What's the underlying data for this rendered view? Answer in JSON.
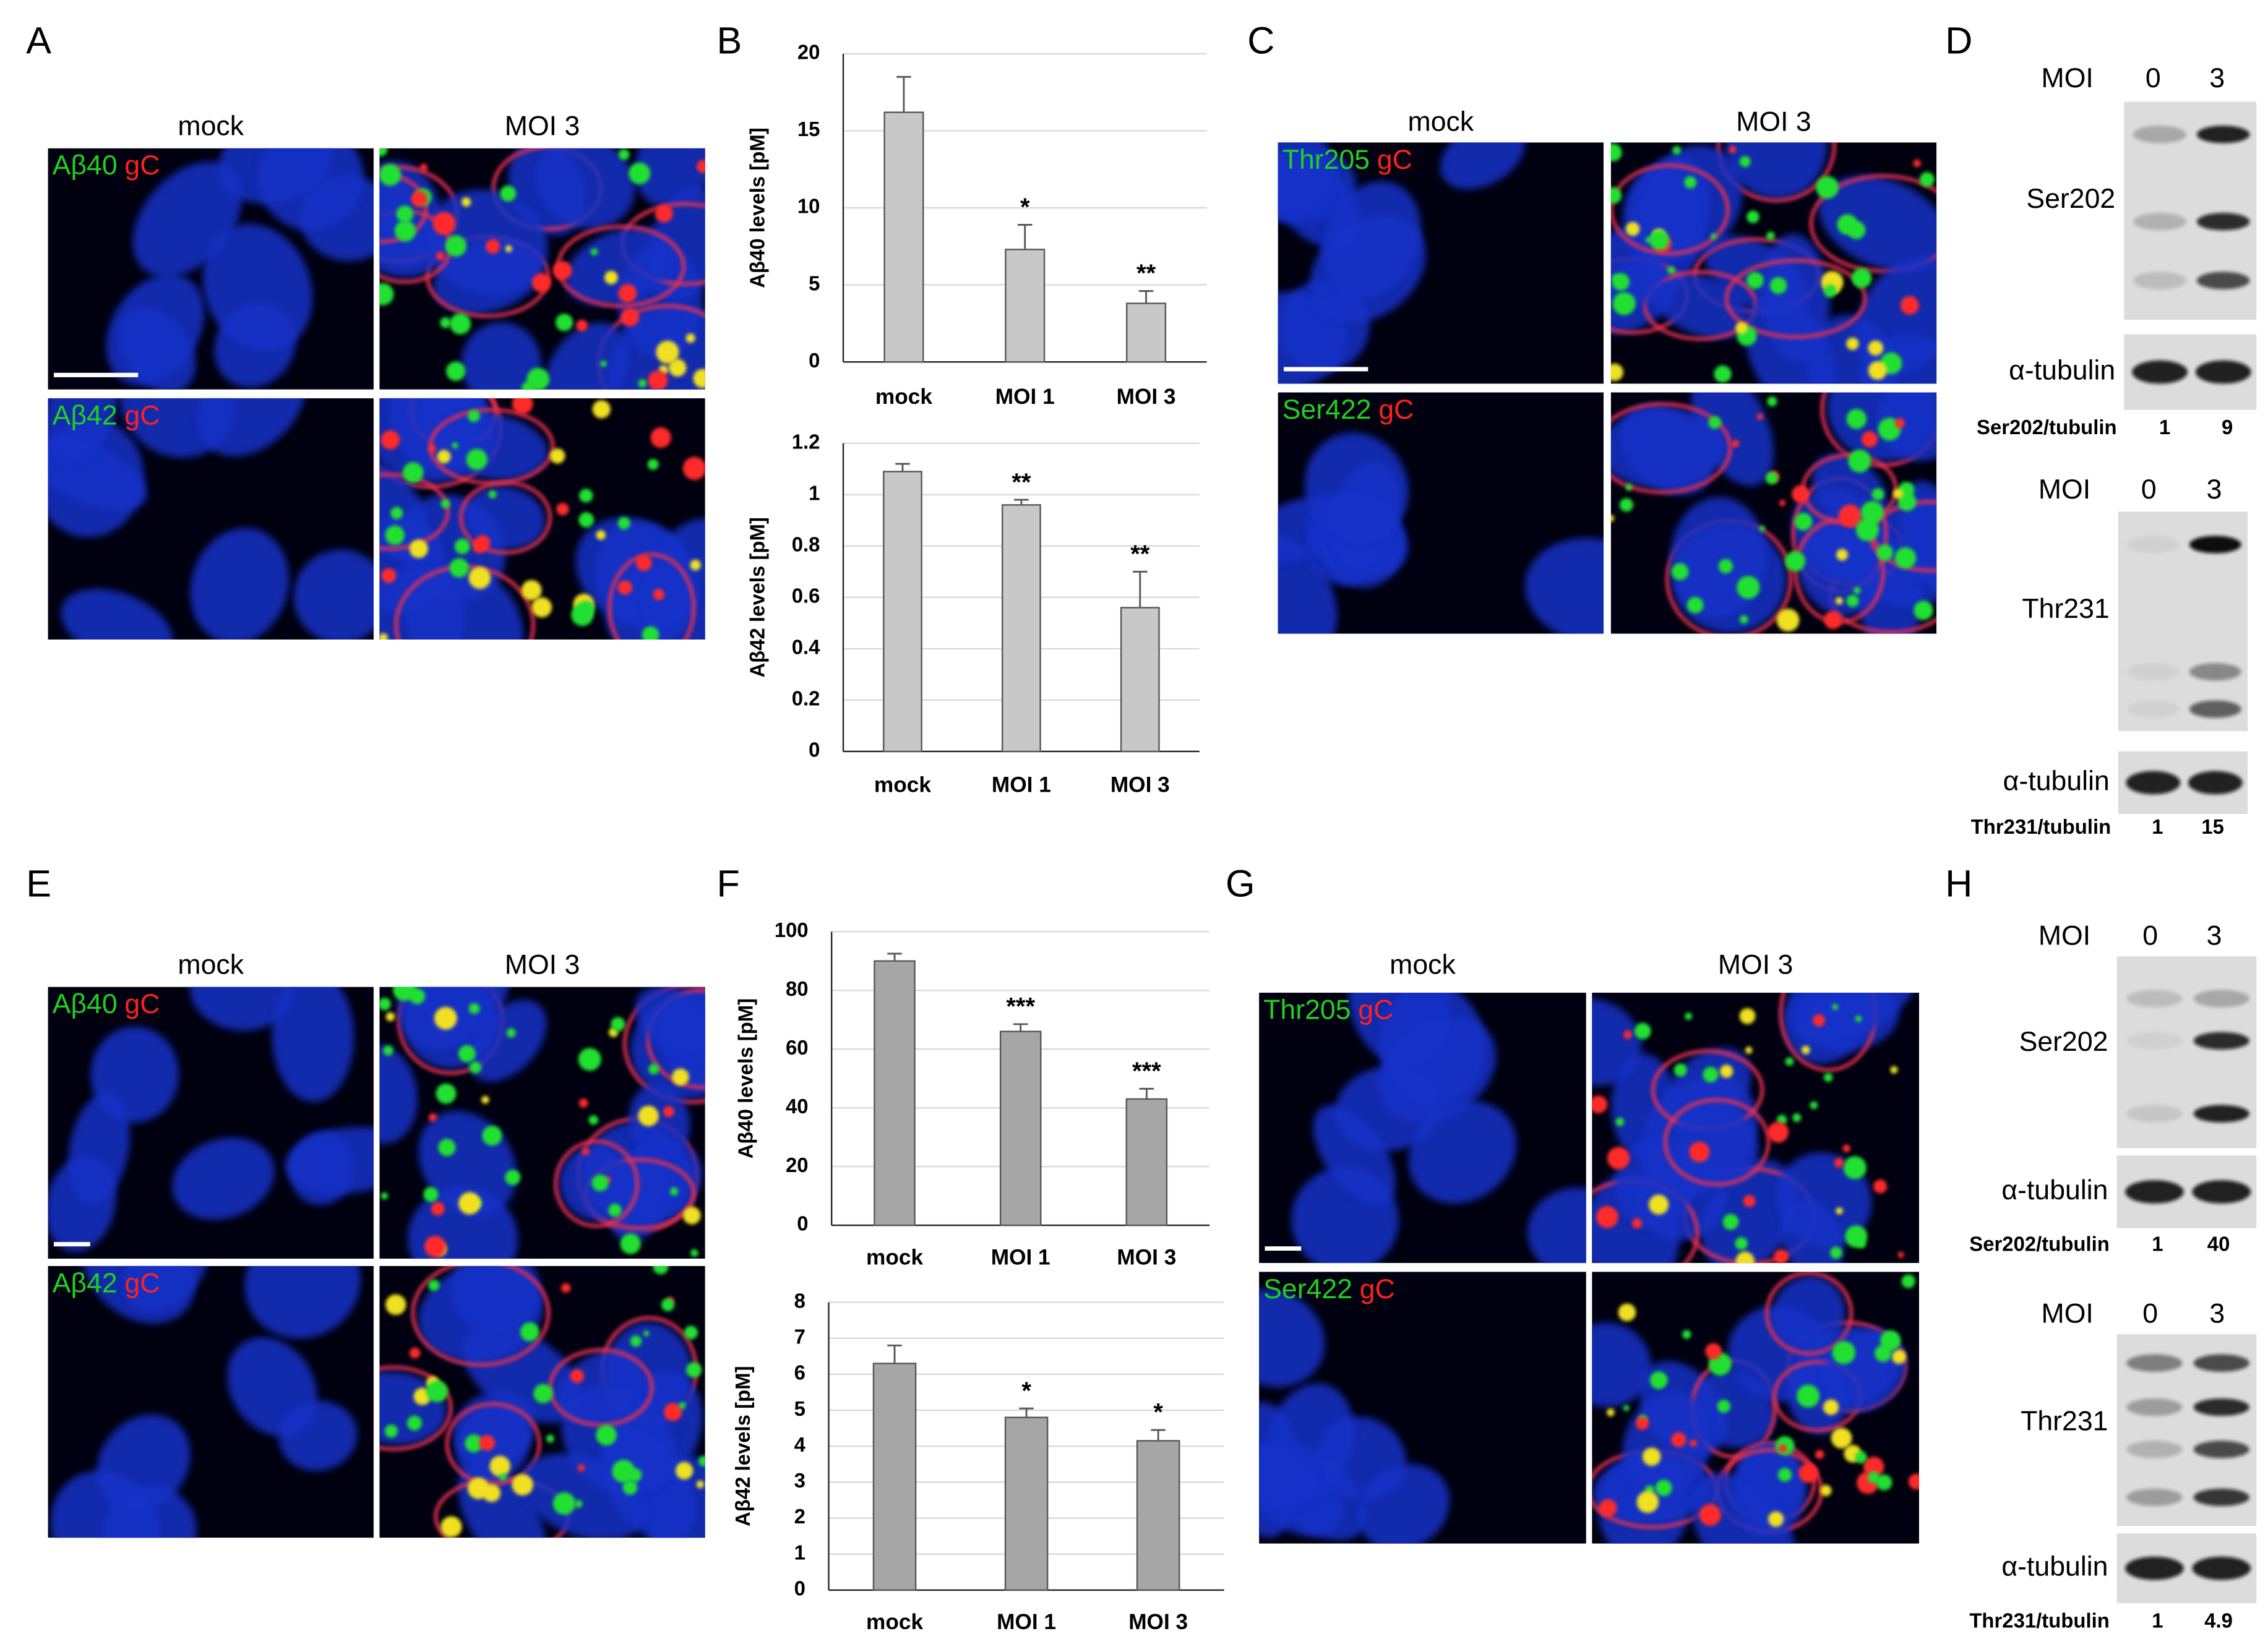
{
  "chart_data": [
    {
      "type": "bar",
      "y_label": "Aβ40 levels [pM]",
      "categories": [
        "mock",
        "MOI 1",
        "MOI 3"
      ],
      "values": [
        16.2,
        7.3,
        3.8
      ],
      "errors": [
        2.3,
        1.6,
        0.8
      ],
      "annotations": [
        null,
        "*",
        "**"
      ],
      "color": "#c8c8c8",
      "ylim": [
        0,
        20
      ],
      "yticks": [
        0,
        5,
        10,
        15,
        20
      ],
      "grid": true
    },
    {
      "type": "bar",
      "y_label": "Aβ42 levels [pM]",
      "categories": [
        "mock",
        "MOI 1",
        "MOI 3"
      ],
      "values": [
        1.09,
        0.96,
        0.56
      ],
      "errors": [
        0.03,
        0.02,
        0.14
      ],
      "annotations": [
        null,
        "**",
        "**"
      ],
      "color": "#c8c8c8",
      "ylim": [
        0,
        1.2
      ],
      "yticks": [
        0,
        0.2,
        0.4,
        0.6,
        0.8,
        1,
        1.2
      ],
      "grid": true
    },
    {
      "type": "bar",
      "y_label": "Aβ40 levels [pM]",
      "categories": [
        "mock",
        "MOI 1",
        "MOI 3"
      ],
      "values": [
        90,
        66,
        43
      ],
      "errors": [
        2.5,
        2.5,
        3.5
      ],
      "annotations": [
        null,
        "***",
        "***"
      ],
      "color": "#a6a6a6",
      "ylim": [
        0,
        100
      ],
      "yticks": [
        0,
        20,
        40,
        60,
        80,
        100
      ],
      "grid": true
    },
    {
      "type": "bar",
      "y_label": "Aβ42 levels [pM]",
      "categories": [
        "mock",
        "MOI 1",
        "MOI 3"
      ],
      "values": [
        6.3,
        4.8,
        4.15
      ],
      "errors": [
        0.5,
        0.25,
        0.3
      ],
      "annotations": [
        null,
        "*",
        "*"
      ],
      "color": "#a6a6a6",
      "ylim": [
        0,
        8
      ],
      "yticks": [
        0,
        1,
        2,
        3,
        4,
        5,
        6,
        7,
        8
      ],
      "grid": true
    }
  ],
  "figure": {
    "panel_labels": [
      "A",
      "B",
      "C",
      "D",
      "E",
      "F",
      "G",
      "H"
    ],
    "if_panels": [
      {
        "headers": [
          "mock",
          "MOI 3"
        ],
        "rows": [
          {
            "green": "Aβ40",
            "red": "gC"
          },
          {
            "green": "Aβ42",
            "red": "gC"
          }
        ]
      },
      {
        "headers": [
          "mock",
          "MOI 3"
        ],
        "rows": [
          {
            "green": "Thr205",
            "red": "gC"
          },
          {
            "green": "Ser422",
            "red": "gC"
          }
        ]
      },
      {
        "headers": [
          "mock",
          "MOI 3"
        ],
        "rows": [
          {
            "green": "Aβ40",
            "red": "gC"
          },
          {
            "green": "Aβ42",
            "red": "gC"
          }
        ]
      },
      {
        "headers": [
          "mock",
          "MOI 3"
        ],
        "rows": [
          {
            "green": "Thr205",
            "red": "gC"
          },
          {
            "green": "Ser422",
            "red": "gC"
          }
        ]
      }
    ],
    "blots": [
      {
        "moi": "MOI",
        "lanes": [
          0,
          3
        ],
        "target": "Ser202",
        "loading": "α-tubulin",
        "ratio_label": "Ser202/tubulin",
        "ratios": [
          1,
          9
        ]
      },
      {
        "moi": "MOI",
        "lanes": [
          0,
          3
        ],
        "target": "Thr231",
        "loading": "α-tubulin",
        "ratio_label": "Thr231/tubulin",
        "ratios": [
          1,
          15
        ]
      },
      {
        "moi": "MOI",
        "lanes": [
          0,
          3
        ],
        "target": "Ser202",
        "loading": "α-tubulin",
        "ratio_label": "Ser202/tubulin",
        "ratios": [
          1,
          40
        ]
      },
      {
        "moi": "MOI",
        "lanes": [
          0,
          3
        ],
        "target": "Thr231",
        "loading": "α-tubulin",
        "ratio_label": "Thr231/tubulin",
        "ratios": [
          1,
          4.9
        ]
      }
    ]
  }
}
